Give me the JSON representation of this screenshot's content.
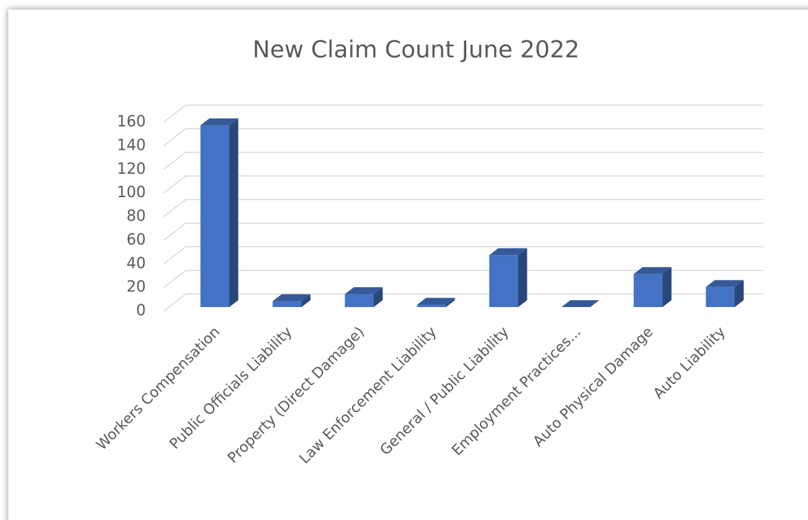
{
  "chart_data": {
    "type": "bar3d",
    "title": "New Claim Count June 2022",
    "categories": [
      "Workers Compensation",
      "Public Officials Liability",
      "Property (Direct Damage)",
      "Law Enforcement Liability",
      "General / Public Liability",
      "Employment Practices...",
      "Auto Physical Damage",
      "Auto Liability"
    ],
    "values": [
      154,
      5,
      11,
      2,
      44,
      0,
      28,
      17
    ],
    "color": "#4472c4",
    "ylim": [
      0,
      160
    ],
    "yticks": [
      0,
      20,
      40,
      60,
      80,
      100,
      120,
      140,
      160
    ],
    "grid": true
  }
}
